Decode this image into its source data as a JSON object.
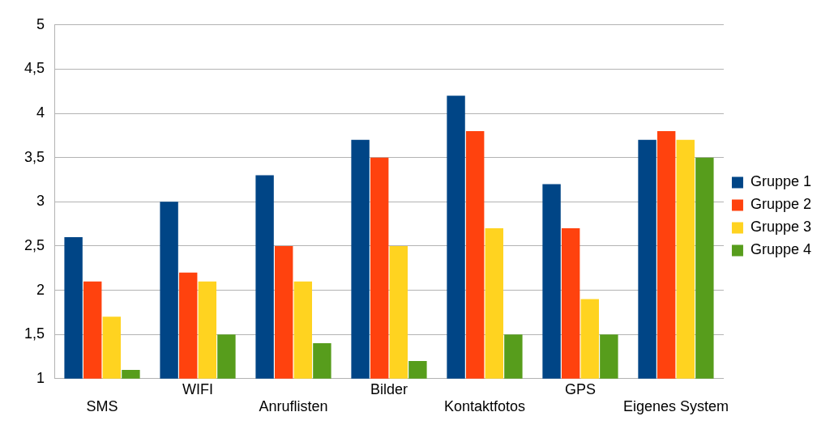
{
  "chart_data": {
    "type": "bar",
    "categories": [
      "SMS",
      "WIFI",
      "Anruflisten",
      "Bilder",
      "Kontaktfotos",
      "GPS",
      "Eigenes System"
    ],
    "series": [
      {
        "name": "Gruppe 1",
        "color": "#004586",
        "values": [
          2.6,
          3.0,
          3.3,
          3.7,
          4.2,
          3.2,
          3.7
        ]
      },
      {
        "name": "Gruppe 2",
        "color": "#ff420e",
        "values": [
          2.1,
          2.2,
          2.5,
          3.5,
          3.8,
          2.7,
          3.8
        ]
      },
      {
        "name": "Gruppe 3",
        "color": "#ffd320",
        "values": [
          1.7,
          2.1,
          2.1,
          2.5,
          2.7,
          1.9,
          3.7
        ]
      },
      {
        "name": "Gruppe 4",
        "color": "#579d1c",
        "values": [
          1.1,
          1.5,
          1.4,
          1.2,
          1.5,
          1.5,
          3.5
        ]
      }
    ],
    "ylim": [
      1,
      5
    ],
    "yticks": [
      1,
      {
        "value": 1.5,
        "label": "1,5"
      },
      2,
      {
        "value": 2.5,
        "label": "2,5"
      },
      3,
      {
        "value": 3.5,
        "label": "3,5"
      },
      4,
      {
        "value": 4.5,
        "label": "4,5"
      },
      5
    ],
    "grid": "y",
    "legend": "right"
  }
}
